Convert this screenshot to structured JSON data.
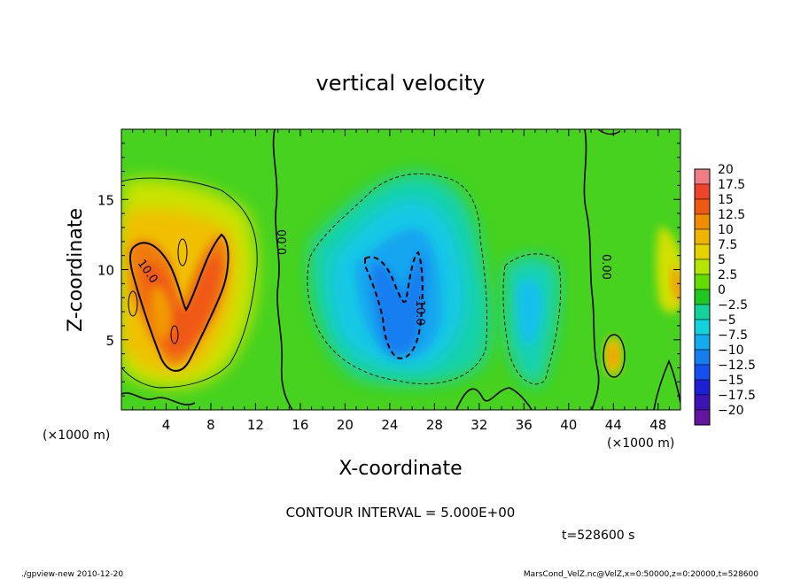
{
  "chart_data": {
    "type": "heatmap",
    "title": "vertical velocity",
    "xlabel": "X-coordinate",
    "ylabel": "Z-coordinate",
    "x_unit_left": "(×1000 m)",
    "x_unit_right": "(×1000 m)",
    "xlim": [
      0,
      50
    ],
    "ylim": [
      0,
      20
    ],
    "x_ticks": [
      "4",
      "8",
      "12",
      "16",
      "20",
      "24",
      "28",
      "32",
      "36",
      "40",
      "44",
      "48"
    ],
    "y_ticks": [
      "5",
      "10",
      "15"
    ],
    "colorbar": {
      "levels": [
        "20",
        "17.5",
        "15",
        "12.5",
        "10",
        "7.5",
        "5",
        "2.5",
        "0",
        "−2.5",
        "−5",
        "−7.5",
        "−10",
        "−12.5",
        "−15",
        "−17.5",
        "−20"
      ],
      "colors": [
        "#f07c86",
        "#f0432c",
        "#f05a10",
        "#f08c00",
        "#f0b400",
        "#e6d200",
        "#b4e600",
        "#64dc00",
        "#1ec81e",
        "#14d29a",
        "#14d2dc",
        "#14aaf0",
        "#147ef0",
        "#1450f0",
        "#1e1ed2",
        "#3c14b4",
        "#6414a0"
      ]
    },
    "contour_labels": [
      "10.0",
      "0.00",
      "0.00",
      "-10.0"
    ],
    "contour_interval": "CONTOUR INTERVAL = 5.000E+00",
    "time_label": "t=528600 s"
  },
  "footer": {
    "left": "./gpview-new  2010-12-20",
    "right": "MarsCond_VelZ.nc@VelZ,x=0:50000,z=0:20000,t=528600"
  }
}
